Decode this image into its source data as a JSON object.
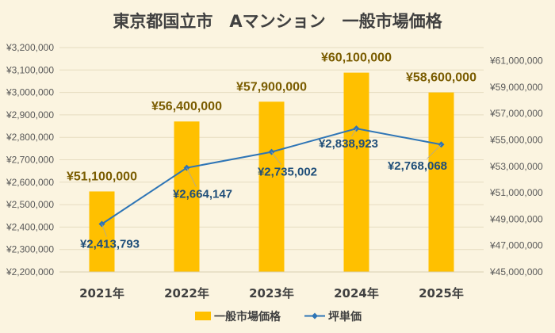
{
  "chart_data": {
    "type": "bar",
    "title": "東京都国立市　Aマンション　一般市場価格",
    "categories": [
      "2021年",
      "2022年",
      "2023年",
      "2024年",
      "2025年"
    ],
    "series": [
      {
        "name": "一般市場価格",
        "type": "bar",
        "axis": "right",
        "color": "#ffc000",
        "values": [
          51100000,
          56400000,
          57900000,
          60100000,
          58600000
        ],
        "labels": [
          "¥51,100,000",
          "¥56,400,000",
          "¥57,900,000",
          "¥60,100,000",
          "¥58,600,000"
        ]
      },
      {
        "name": "坪単価",
        "type": "line",
        "axis": "left",
        "color": "#2e75b6",
        "values": [
          2413793,
          2664147,
          2735002,
          2838923,
          2768068
        ],
        "labels": [
          "¥2,413,793",
          "¥2,664,147",
          "¥2,735,002",
          "¥2,838,923",
          "¥2,768,068"
        ]
      }
    ],
    "y_left": {
      "range": [
        2200000,
        3200000
      ],
      "ticks": [
        3200000,
        3100000,
        3000000,
        2900000,
        2800000,
        2700000,
        2600000,
        2500000,
        2400000,
        2300000,
        2200000
      ],
      "tick_labels": [
        "¥3,200,000",
        "¥3,100,000",
        "¥3,000,000",
        "¥2,900,000",
        "¥2,800,000",
        "¥2,700,000",
        "¥2,600,000",
        "¥2,500,000",
        "¥2,400,000",
        "¥2,300,000",
        "¥2,200,000"
      ]
    },
    "y_right": {
      "range": [
        45000000,
        62000000
      ],
      "ticks": [
        61000000,
        59000000,
        57000000,
        55000000,
        53000000,
        51000000,
        49000000,
        47000000,
        45000000
      ],
      "tick_labels": [
        "¥61,000,000",
        "¥59,000,000",
        "¥57,000,000",
        "¥55,000,000",
        "¥53,000,000",
        "¥51,000,000",
        "¥49,000,000",
        "¥47,000,000",
        "¥45,000,000"
      ]
    },
    "grid": true,
    "legend": "bottom"
  }
}
